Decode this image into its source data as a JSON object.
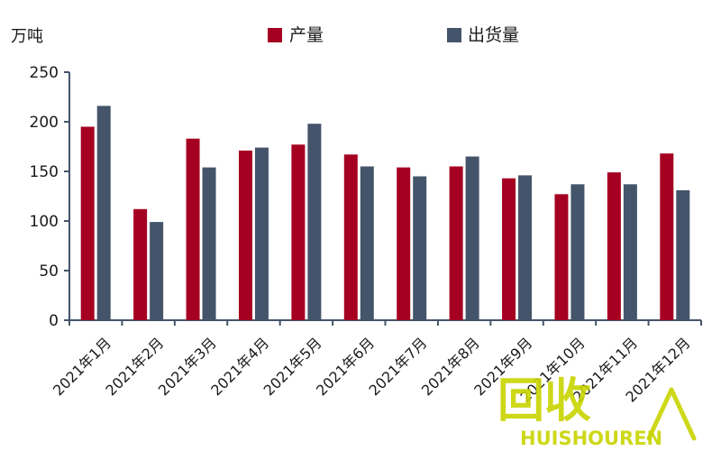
{
  "chart_data": {
    "type": "bar",
    "unit_label": "万吨",
    "categories": [
      "2021年1月",
      "2021年2月",
      "2021年3月",
      "2021年4月",
      "2021年5月",
      "2021年6月",
      "2021年7月",
      "2021年8月",
      "2021年9月",
      "2021年10月",
      "2021年11月",
      "2021年12月"
    ],
    "series": [
      {
        "name": "产量",
        "color": "#a50021",
        "values": [
          195,
          112,
          183,
          171,
          177,
          167,
          154,
          155,
          143,
          127,
          149,
          168
        ]
      },
      {
        "name": "出货量",
        "color": "#44546a",
        "values": [
          216,
          99,
          154,
          174,
          198,
          155,
          145,
          165,
          146,
          137,
          137,
          131
        ]
      }
    ],
    "y_ticks": [
      "0",
      "50",
      "100",
      "150",
      "200",
      "250"
    ],
    "ylim": [
      0,
      250
    ],
    "grid": false,
    "legend_position": "top-center"
  },
  "watermark": {
    "text": "回收",
    "subtext": "HUISHOUREN",
    "color": "#c8d400"
  }
}
